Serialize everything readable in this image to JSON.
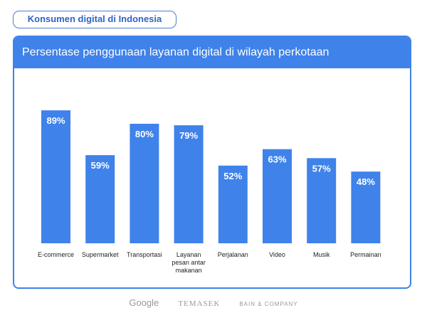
{
  "header": {
    "badge": "Konsumen digital di Indonesia"
  },
  "chart_data": {
    "type": "bar",
    "title": "Persentase penggunaan layanan digital di wilayah perkotaan",
    "categories": [
      "E-commerce",
      "Supermarket",
      "Transportasi",
      "Layanan pesan antar makanan",
      "Perjalanan",
      "Video",
      "Musik",
      "Permainan"
    ],
    "values": [
      89,
      59,
      80,
      79,
      52,
      63,
      57,
      48
    ],
    "labels": [
      "89%",
      "59%",
      "80%",
      "79%",
      "52%",
      "63%",
      "57%",
      "48%"
    ],
    "unit": "%",
    "ylim": [
      0,
      100
    ],
    "grid": false,
    "color": "#3f82ea"
  },
  "footer": {
    "logos": [
      "Google",
      "TEMASEK",
      "BAIN & COMPANY"
    ]
  }
}
